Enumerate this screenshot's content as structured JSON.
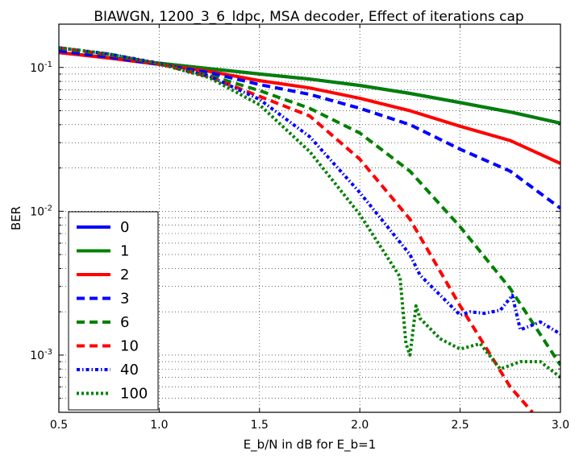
{
  "chart_data": {
    "type": "line",
    "title": "BIAWGN, 1200_3_6_ldpc, MSA decoder, Effect of iterations cap",
    "xlabel": "E_b/N in dB for E_b=1",
    "ylabel": "BER",
    "xlim": [
      0.5,
      3.0
    ],
    "ylim": [
      0.0004,
      0.2
    ],
    "yscale": "log",
    "grid": true,
    "x_tick_labels": [
      "0.5",
      "1.0",
      "1.5",
      "2.0",
      "2.5",
      "3.0"
    ],
    "x_ticks": [
      0.5,
      1.0,
      1.5,
      2.0,
      2.5,
      3.0
    ],
    "y_ticks": [
      0.001,
      0.01,
      0.1
    ],
    "y_tick_labels": [
      {
        "base": "10",
        "exp": "-3"
      },
      {
        "base": "10",
        "exp": "-2"
      },
      {
        "base": "10",
        "exp": "-1"
      }
    ],
    "legend_position": "lower-left",
    "series": [
      {
        "name": "0",
        "color": "#0000ff",
        "dash": "solid",
        "x": [
          0.5,
          0.75,
          1.0,
          1.25,
          1.5,
          1.75,
          2.0,
          2.25,
          2.5,
          2.75,
          3.0
        ],
        "y": [
          0.127,
          0.117,
          0.107,
          0.098,
          0.09,
          0.083,
          0.075,
          0.066,
          0.057,
          0.049,
          0.041
        ]
      },
      {
        "name": "1",
        "color": "#008000",
        "dash": "solid",
        "x": [
          0.5,
          0.75,
          1.0,
          1.25,
          1.5,
          1.75,
          2.0,
          2.25,
          2.5,
          2.75,
          3.0
        ],
        "y": [
          0.127,
          0.117,
          0.107,
          0.098,
          0.09,
          0.083,
          0.075,
          0.066,
          0.057,
          0.049,
          0.041
        ]
      },
      {
        "name": "2",
        "color": "#ff0000",
        "dash": "solid",
        "x": [
          0.5,
          0.75,
          1.0,
          1.25,
          1.5,
          1.75,
          2.0,
          2.25,
          2.5,
          2.75,
          3.0
        ],
        "y": [
          0.127,
          0.116,
          0.105,
          0.094,
          0.081,
          0.072,
          0.061,
          0.05,
          0.039,
          0.031,
          0.0215
        ]
      },
      {
        "name": "3",
        "color": "#0000ff",
        "dash": "dashed",
        "x": [
          0.5,
          0.75,
          1.0,
          1.25,
          1.5,
          1.75,
          2.0,
          2.25,
          2.5,
          2.75,
          3.0
        ],
        "y": [
          0.13,
          0.118,
          0.105,
          0.092,
          0.076,
          0.065,
          0.052,
          0.04,
          0.027,
          0.019,
          0.0105
        ]
      },
      {
        "name": "6",
        "color": "#008000",
        "dash": "dashed",
        "x": [
          0.5,
          0.75,
          1.0,
          1.25,
          1.5,
          1.75,
          2.0,
          2.25,
          2.5,
          2.75,
          3.0
        ],
        "y": [
          0.136,
          0.122,
          0.106,
          0.088,
          0.069,
          0.052,
          0.035,
          0.019,
          0.0078,
          0.0029,
          0.00085
        ]
      },
      {
        "name": "10",
        "color": "#ff0000",
        "dash": "dashed",
        "x": [
          0.5,
          0.75,
          1.0,
          1.25,
          1.5,
          1.75,
          2.0,
          2.25,
          2.5,
          2.75,
          2.86
        ],
        "y": [
          0.137,
          0.123,
          0.106,
          0.086,
          0.063,
          0.046,
          0.023,
          0.0088,
          0.0022,
          0.0006,
          0.0004
        ]
      },
      {
        "name": "40",
        "color": "#0000ff",
        "dash": "dashdot",
        "x": [
          0.5,
          0.75,
          1.0,
          1.25,
          1.5,
          1.75,
          2.0,
          2.25,
          2.3,
          2.5,
          2.55,
          2.62,
          2.7,
          2.76,
          2.8,
          2.9,
          3.0
        ],
        "y": [
          0.137,
          0.124,
          0.107,
          0.087,
          0.06,
          0.033,
          0.0135,
          0.005,
          0.0036,
          0.0019,
          0.002,
          0.00195,
          0.00205,
          0.0026,
          0.0015,
          0.0017,
          0.0014
        ]
      },
      {
        "name": "100",
        "color": "#008000",
        "dash": "dotted",
        "x": [
          0.5,
          0.75,
          1.0,
          1.25,
          1.5,
          1.75,
          2.0,
          2.2,
          2.23,
          2.25,
          2.28,
          2.3,
          2.4,
          2.5,
          2.6,
          2.7,
          2.8,
          2.9,
          3.0
        ],
        "y": [
          0.137,
          0.124,
          0.106,
          0.085,
          0.055,
          0.026,
          0.0095,
          0.0035,
          0.0012,
          0.001,
          0.0022,
          0.0018,
          0.0013,
          0.0011,
          0.0012,
          0.0008,
          0.0009,
          0.0009,
          0.0007
        ]
      }
    ]
  }
}
